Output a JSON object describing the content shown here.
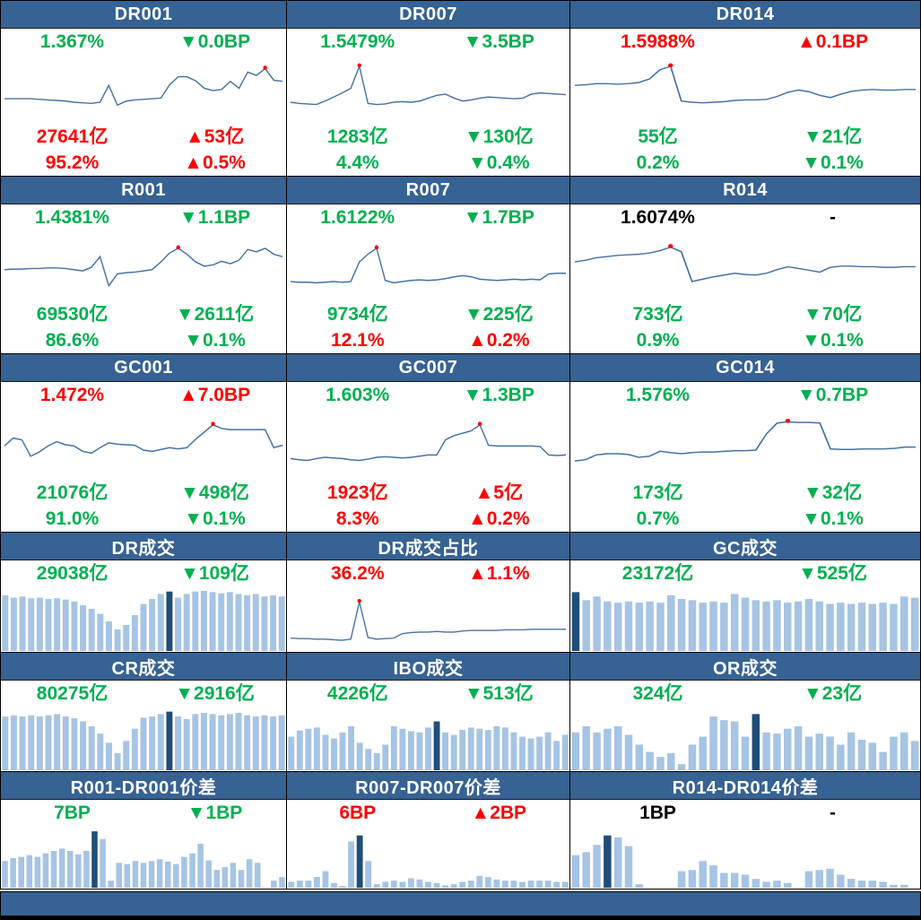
{
  "colors": {
    "header_bg": "#366294",
    "footer_bg": "#366294",
    "green": "#00B050",
    "red": "#FF0000",
    "black": "#000000",
    "line": "#4472A4",
    "dot": "#FF0000",
    "light_bar": "#A6C4E4",
    "dark_bar": "#1F4E79",
    "border": "#000000"
  },
  "chart_data": {
    "type": "dashboard",
    "note": "grid of money-market sparkline/bar panels; series values are normalized 0-1 chart shapes (no axes shown in source)",
    "panels": [
      {
        "title": "DR001",
        "chart_type": "line",
        "dot_index": 30,
        "stats": [
          {
            "left": "1.367%",
            "left_color": "green",
            "right": "▼0.0BP",
            "right_color": "green"
          },
          {
            "left": "27641亿",
            "left_color": "red",
            "right": "▲53亿",
            "right_color": "red"
          },
          {
            "left": "95.2%",
            "left_color": "red",
            "right": "▲0.5%",
            "right_color": "red"
          }
        ],
        "values": [
          0.32,
          0.32,
          0.32,
          0.32,
          0.31,
          0.3,
          0.29,
          0.28,
          0.26,
          0.25,
          0.24,
          0.26,
          0.55,
          0.21,
          0.28,
          0.3,
          0.31,
          0.32,
          0.33,
          0.56,
          0.7,
          0.7,
          0.63,
          0.5,
          0.46,
          0.48,
          0.62,
          0.5,
          0.78,
          0.72,
          0.84,
          0.64,
          0.62
        ]
      },
      {
        "title": "DR007",
        "chart_type": "line",
        "dot_index": 8,
        "stats": [
          {
            "left": "1.5479%",
            "left_color": "green",
            "right": "▼3.5BP",
            "right_color": "green"
          },
          {
            "left": "1283亿",
            "left_color": "green",
            "right": "▼130亿",
            "right_color": "green"
          },
          {
            "left": "4.4%",
            "left_color": "green",
            "right": "▼0.4%",
            "right_color": "green"
          }
        ],
        "values": [
          0.26,
          0.24,
          0.23,
          0.22,
          0.28,
          0.35,
          0.42,
          0.5,
          0.88,
          0.24,
          0.22,
          0.23,
          0.26,
          0.27,
          0.26,
          0.28,
          0.33,
          0.38,
          0.4,
          0.33,
          0.28,
          0.3,
          0.33,
          0.35,
          0.34,
          0.33,
          0.32,
          0.33,
          0.4,
          0.42,
          0.41,
          0.4,
          0.39
        ]
      },
      {
        "title": "DR014",
        "chart_type": "line",
        "dot_index": 9,
        "stats": [
          {
            "left": "1.5988%",
            "left_color": "red",
            "right": "▲0.1BP",
            "right_color": "red"
          },
          {
            "left": "55亿",
            "left_color": "green",
            "right": "▼21亿",
            "right_color": "green"
          },
          {
            "left": "0.2%",
            "left_color": "green",
            "right": "▼0.1%",
            "right_color": "green"
          }
        ],
        "values": [
          0.55,
          0.56,
          0.58,
          0.58,
          0.57,
          0.58,
          0.6,
          0.66,
          0.82,
          0.88,
          0.28,
          0.26,
          0.25,
          0.26,
          0.27,
          0.29,
          0.3,
          0.3,
          0.31,
          0.36,
          0.43,
          0.47,
          0.44,
          0.38,
          0.34,
          0.4,
          0.45,
          0.47,
          0.48,
          0.47,
          0.47,
          0.48,
          0.48
        ]
      },
      {
        "title": "R001",
        "chart_type": "line",
        "dot_index": 20,
        "stats": [
          {
            "left": "1.4381%",
            "left_color": "green",
            "right": "▼1.1BP",
            "right_color": "green"
          },
          {
            "left": "69530亿",
            "left_color": "green",
            "right": "▼2611亿",
            "right_color": "green"
          },
          {
            "left": "86.6%",
            "left_color": "green",
            "right": "▼0.1%",
            "right_color": "green"
          }
        ],
        "values": [
          0.42,
          0.43,
          0.43,
          0.44,
          0.44,
          0.45,
          0.45,
          0.44,
          0.42,
          0.4,
          0.46,
          0.64,
          0.15,
          0.35,
          0.37,
          0.38,
          0.4,
          0.42,
          0.55,
          0.7,
          0.78,
          0.68,
          0.55,
          0.48,
          0.5,
          0.56,
          0.52,
          0.58,
          0.76,
          0.72,
          0.78,
          0.68,
          0.64
        ]
      },
      {
        "title": "R007",
        "chart_type": "line",
        "dot_index": 10,
        "stats": [
          {
            "left": "1.6122%",
            "left_color": "green",
            "right": "▼1.7BP",
            "right_color": "green"
          },
          {
            "left": "9734亿",
            "left_color": "green",
            "right": "▼225亿",
            "right_color": "green"
          },
          {
            "left": "12.1%",
            "left_color": "red",
            "right": "▲0.2%",
            "right_color": "red"
          }
        ],
        "values": [
          0.22,
          0.21,
          0.21,
          0.2,
          0.21,
          0.22,
          0.21,
          0.22,
          0.55,
          0.68,
          0.78,
          0.24,
          0.2,
          0.22,
          0.24,
          0.25,
          0.24,
          0.25,
          0.27,
          0.3,
          0.32,
          0.3,
          0.26,
          0.25,
          0.24,
          0.25,
          0.26,
          0.25,
          0.26,
          0.25,
          0.35,
          0.36,
          0.36
        ]
      },
      {
        "title": "R014",
        "chart_type": "line",
        "dot_index": 9,
        "stats": [
          {
            "left": "1.6074%",
            "left_color": "black",
            "right": "-",
            "right_color": "black"
          },
          {
            "left": "733亿",
            "left_color": "green",
            "right": "▼70亿",
            "right_color": "green"
          },
          {
            "left": "0.9%",
            "left_color": "green",
            "right": "▼0.1%",
            "right_color": "green"
          }
        ],
        "values": [
          0.55,
          0.58,
          0.62,
          0.64,
          0.66,
          0.67,
          0.68,
          0.7,
          0.74,
          0.8,
          0.72,
          0.22,
          0.26,
          0.3,
          0.33,
          0.36,
          0.34,
          0.33,
          0.36,
          0.42,
          0.47,
          0.44,
          0.41,
          0.38,
          0.46,
          0.48,
          0.48,
          0.47,
          0.47,
          0.46,
          0.46,
          0.47,
          0.47
        ]
      },
      {
        "title": "GC001",
        "chart_type": "line",
        "dot_index": 24,
        "stats": [
          {
            "left": "1.472%",
            "left_color": "red",
            "right": "▲7.0BP",
            "right_color": "red"
          },
          {
            "left": "21076亿",
            "left_color": "green",
            "right": "▼498亿",
            "right_color": "green"
          },
          {
            "left": "91.0%",
            "left_color": "green",
            "right": "▼0.1%",
            "right_color": "green"
          }
        ],
        "values": [
          0.45,
          0.58,
          0.55,
          0.28,
          0.35,
          0.45,
          0.52,
          0.47,
          0.45,
          0.36,
          0.33,
          0.42,
          0.5,
          0.48,
          0.47,
          0.46,
          0.38,
          0.36,
          0.39,
          0.42,
          0.4,
          0.42,
          0.56,
          0.68,
          0.8,
          0.74,
          0.72,
          0.72,
          0.72,
          0.72,
          0.72,
          0.42,
          0.46
        ]
      },
      {
        "title": "GC007",
        "chart_type": "line",
        "dot_index": 22,
        "stats": [
          {
            "left": "1.603%",
            "left_color": "green",
            "right": "▼1.3BP",
            "right_color": "green"
          },
          {
            "left": "1923亿",
            "left_color": "red",
            "right": "▲5亿",
            "right_color": "red"
          },
          {
            "left": "8.3%",
            "left_color": "red",
            "right": "▲0.2%",
            "right_color": "red"
          }
        ],
        "values": [
          0.24,
          0.22,
          0.21,
          0.24,
          0.26,
          0.25,
          0.24,
          0.22,
          0.21,
          0.23,
          0.26,
          0.27,
          0.26,
          0.25,
          0.26,
          0.28,
          0.3,
          0.3,
          0.55,
          0.62,
          0.66,
          0.7,
          0.8,
          0.46,
          0.45,
          0.45,
          0.45,
          0.45,
          0.45,
          0.44,
          0.3,
          0.29,
          0.3
        ]
      },
      {
        "title": "GC014",
        "chart_type": "line",
        "dot_index": 20,
        "stats": [
          {
            "left": "1.576%",
            "left_color": "green",
            "right": "▼0.7BP",
            "right_color": "green"
          },
          {
            "left": "173亿",
            "left_color": "green",
            "right": "▼32亿",
            "right_color": "green"
          },
          {
            "left": "0.7%",
            "left_color": "green",
            "right": "▼0.1%",
            "right_color": "green"
          }
        ],
        "values": [
          0.2,
          0.22,
          0.3,
          0.32,
          0.32,
          0.31,
          0.26,
          0.28,
          0.36,
          0.34,
          0.32,
          0.34,
          0.35,
          0.35,
          0.36,
          0.37,
          0.37,
          0.38,
          0.65,
          0.83,
          0.85,
          0.84,
          0.84,
          0.83,
          0.4,
          0.39,
          0.39,
          0.4,
          0.4,
          0.4,
          0.41,
          0.43,
          0.43
        ]
      },
      {
        "title": "DR成交",
        "chart_type": "bar",
        "highlight_index": 19,
        "stats": [
          {
            "left": "29038亿",
            "left_color": "green",
            "right": "▼109亿",
            "right_color": "green"
          }
        ],
        "values": [
          0.9,
          0.86,
          0.88,
          0.85,
          0.86,
          0.84,
          0.85,
          0.83,
          0.8,
          0.74,
          0.68,
          0.6,
          0.48,
          0.35,
          0.42,
          0.58,
          0.76,
          0.84,
          0.92,
          0.96,
          0.86,
          0.92,
          0.96,
          0.97,
          0.95,
          0.93,
          0.95,
          0.92,
          0.9,
          0.92,
          0.88,
          0.9,
          0.88
        ]
      },
      {
        "title": "DR成交占比",
        "chart_type": "line",
        "dot_index": 8,
        "stats": [
          {
            "left": "36.2%",
            "left_color": "red",
            "right": "▲1.1%",
            "right_color": "red"
          }
        ],
        "values": [
          0.14,
          0.13,
          0.13,
          0.12,
          0.12,
          0.11,
          0.1,
          0.12,
          0.8,
          0.15,
          0.12,
          0.13,
          0.14,
          0.22,
          0.24,
          0.25,
          0.25,
          0.26,
          0.25,
          0.25,
          0.27,
          0.28,
          0.28,
          0.28,
          0.28,
          0.29,
          0.29,
          0.29,
          0.3,
          0.3,
          0.3,
          0.3,
          0.3
        ]
      },
      {
        "title": "GC成交",
        "chart_type": "bar",
        "highlight_index": 0,
        "stats": [
          {
            "left": "23172亿",
            "left_color": "green",
            "right": "▼525亿",
            "right_color": "green"
          }
        ],
        "values": [
          0.95,
          0.82,
          0.88,
          0.8,
          0.78,
          0.8,
          0.78,
          0.8,
          0.78,
          0.9,
          0.84,
          0.82,
          0.78,
          0.8,
          0.78,
          0.92,
          0.86,
          0.82,
          0.8,
          0.82,
          0.78,
          0.8,
          0.84,
          0.8,
          0.76,
          0.78,
          0.76,
          0.78,
          0.76,
          0.78,
          0.76,
          0.88,
          0.86
        ]
      },
      {
        "title": "CR成交",
        "chart_type": "bar",
        "highlight_index": 19,
        "stats": [
          {
            "left": "80275亿",
            "left_color": "green",
            "right": "▼2916亿",
            "right_color": "green"
          }
        ],
        "values": [
          0.88,
          0.9,
          0.88,
          0.9,
          0.88,
          0.9,
          0.92,
          0.88,
          0.85,
          0.8,
          0.72,
          0.6,
          0.45,
          0.28,
          0.48,
          0.68,
          0.86,
          0.88,
          0.92,
          0.96,
          0.88,
          0.84,
          0.92,
          0.94,
          0.92,
          0.9,
          0.92,
          0.94,
          0.9,
          0.88,
          0.9,
          0.88,
          0.9
        ]
      },
      {
        "title": "IBO成交",
        "chart_type": "bar",
        "highlight_index": 17,
        "stats": [
          {
            "left": "4226亿",
            "left_color": "green",
            "right": "▼513亿",
            "right_color": "green"
          }
        ],
        "values": [
          0.55,
          0.65,
          0.68,
          0.7,
          0.58,
          0.52,
          0.62,
          0.72,
          0.45,
          0.35,
          0.28,
          0.42,
          0.72,
          0.68,
          0.64,
          0.62,
          0.7,
          0.8,
          0.62,
          0.58,
          0.66,
          0.7,
          0.68,
          0.66,
          0.72,
          0.7,
          0.62,
          0.55,
          0.52,
          0.55,
          0.62,
          0.48,
          0.58
        ]
      },
      {
        "title": "OR成交",
        "chart_type": "bar",
        "highlight_index": 17,
        "stats": [
          {
            "left": "324亿",
            "left_color": "green",
            "right": "▼23亿",
            "right_color": "green"
          }
        ],
        "values": [
          0.62,
          0.72,
          0.62,
          0.68,
          0.72,
          0.58,
          0.42,
          0.3,
          0.22,
          0.28,
          0.1,
          0.42,
          0.55,
          0.88,
          0.82,
          0.8,
          0.55,
          0.92,
          0.62,
          0.6,
          0.68,
          0.72,
          0.55,
          0.6,
          0.55,
          0.42,
          0.62,
          0.5,
          0.45,
          0.3,
          0.55,
          0.62,
          0.48
        ]
      },
      {
        "title": "R001-DR001价差",
        "chart_type": "bar",
        "highlight_index": 11,
        "stats": [
          {
            "left": "7BP",
            "left_color": "green",
            "right": "▼1BP",
            "right_color": "green"
          }
        ],
        "values": [
          0.45,
          0.5,
          0.52,
          0.55,
          0.52,
          0.58,
          0.62,
          0.66,
          0.62,
          0.56,
          0.62,
          0.95,
          0.82,
          0.12,
          0.42,
          0.4,
          0.45,
          0.42,
          0.45,
          0.48,
          0.44,
          0.4,
          0.52,
          0.58,
          0.74,
          0.46,
          0.3,
          0.35,
          0.42,
          0.3,
          0.48,
          0.42,
          0.0,
          0.12,
          0.18
        ]
      },
      {
        "title": "R007-DR007价差",
        "chart_type": "bar",
        "highlight_index": 8,
        "stats": [
          {
            "left": "6BP",
            "left_color": "red",
            "right": "▲2BP",
            "right_color": "red"
          }
        ],
        "values": [
          0.1,
          0.12,
          0.12,
          0.18,
          0.28,
          0.08,
          0.03,
          0.78,
          0.88,
          0.45,
          0.06,
          0.1,
          0.12,
          0.1,
          0.16,
          0.14,
          0.1,
          0.08,
          0.04,
          0.06,
          0.1,
          0.12,
          0.2,
          0.18,
          0.14,
          0.12,
          0.12,
          0.1,
          0.12,
          0.12,
          0.12,
          0.1,
          0.1
        ]
      },
      {
        "title": "R014-DR014价差",
        "chart_type": "bar",
        "highlight_index": 3,
        "stats": [
          {
            "left": "1BP",
            "left_color": "black",
            "right": "-",
            "right_color": "black"
          }
        ],
        "values": [
          0.55,
          0.6,
          0.72,
          0.88,
          0.85,
          0.7,
          0.06,
          0,
          0,
          0,
          0.28,
          0.3,
          0.45,
          0.38,
          0.25,
          0.25,
          0.22,
          0.15,
          0.1,
          0.12,
          0.08,
          0,
          0.28,
          0.3,
          0.32,
          0.22,
          0.15,
          0.12,
          0.12,
          0.1,
          0.05,
          0.05,
          0
        ]
      }
    ]
  }
}
